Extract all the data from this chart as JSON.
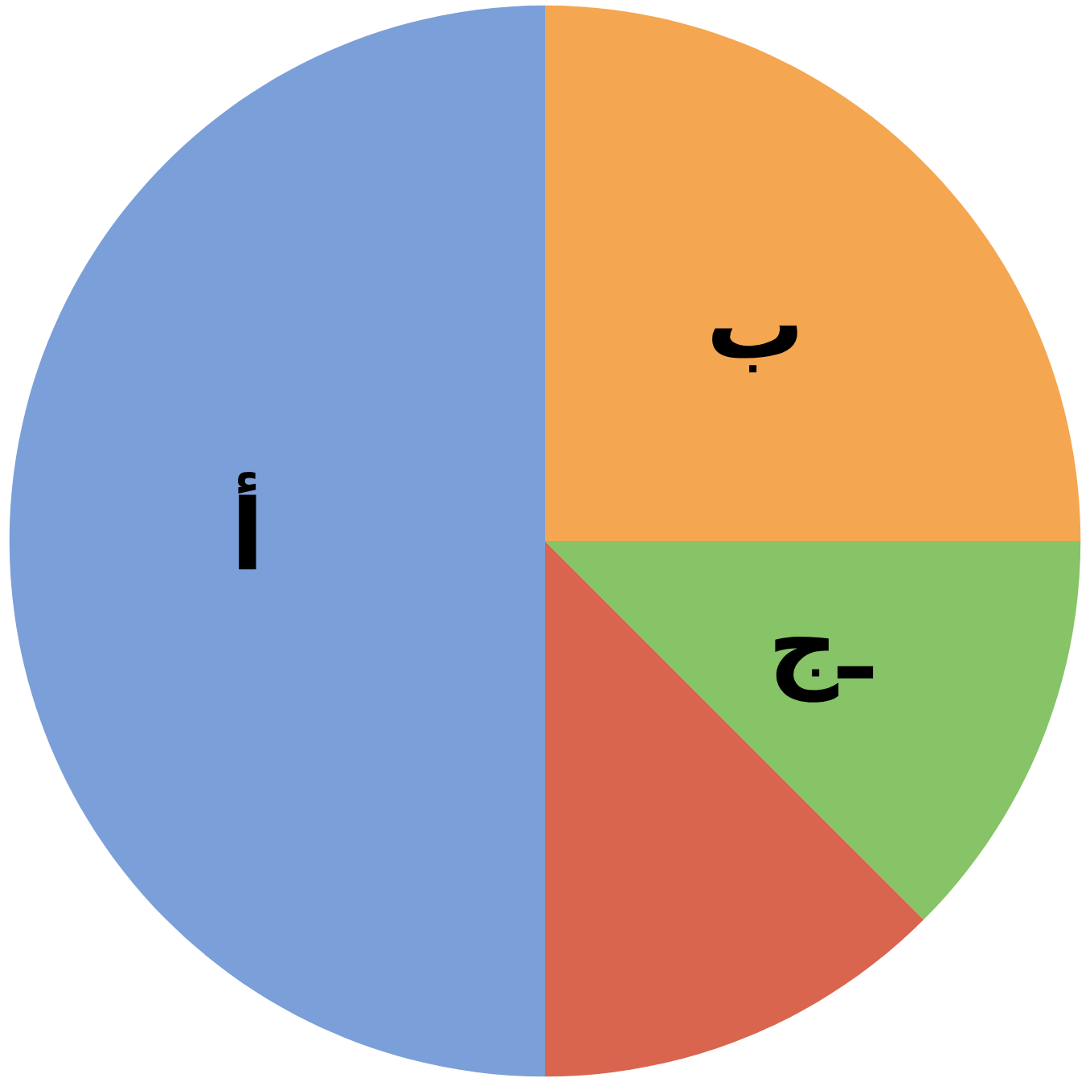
{
  "chart_data": {
    "type": "pie",
    "categories": [
      "أ",
      null,
      "جـ",
      "ب"
    ],
    "values": [
      50,
      12.5,
      12.5,
      25
    ],
    "colors": [
      "#7b9fd8",
      "#d9654f",
      "#86c467",
      "#f5a650"
    ]
  }
}
